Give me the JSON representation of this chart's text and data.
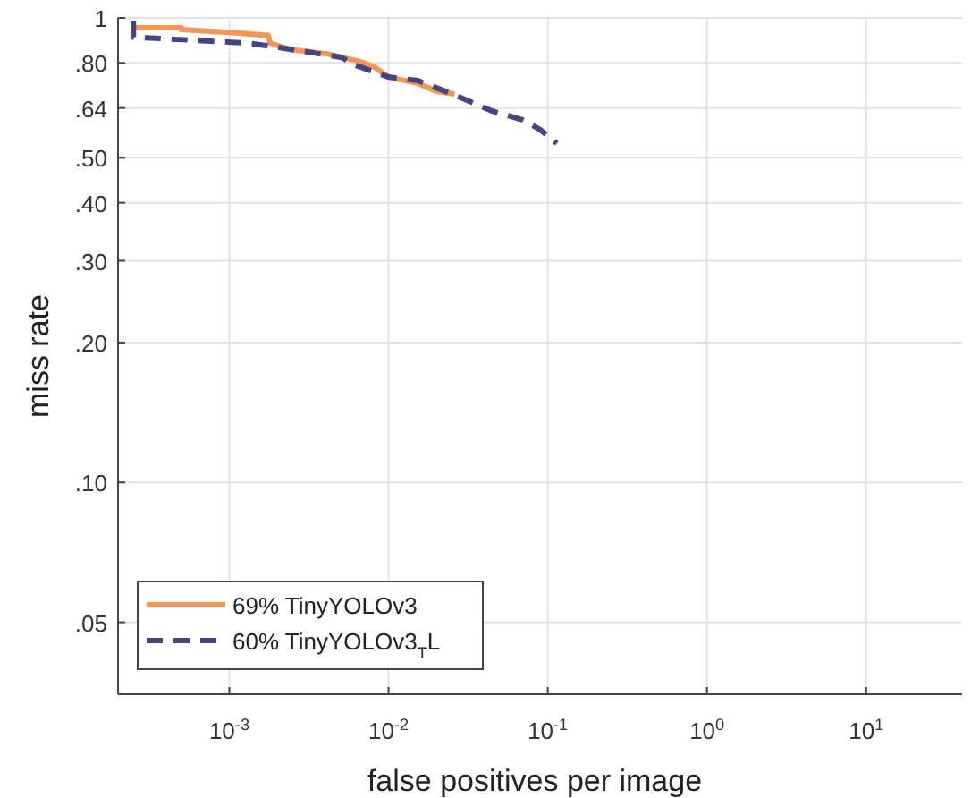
{
  "chart_data": {
    "type": "line",
    "xlabel": "false positives per image",
    "ylabel": "miss rate",
    "log": "xy",
    "grid": true,
    "legend": "bottom left",
    "xlim": [
      0.0002,
      40
    ],
    "ylim": [
      0.035,
      1
    ],
    "xticks": [
      {
        "value": 0.001,
        "label": "10$^{-3}$"
      },
      {
        "value": 0.01,
        "label": "10$^{-2}$"
      },
      {
        "value": 0.1,
        "label": "10$^{-1}$"
      },
      {
        "value": 1,
        "label": "10$^{0}$"
      },
      {
        "value": 10,
        "label": "10$^{1}$"
      }
    ],
    "yticks": [
      {
        "value": 0.05,
        "label": ".05"
      },
      {
        "value": 0.1,
        "label": ".10"
      },
      {
        "value": 0.2,
        "label": ".20"
      },
      {
        "value": 0.3,
        "label": ".30"
      },
      {
        "value": 0.4,
        "label": ".40"
      },
      {
        "value": 0.5,
        "label": ".50"
      },
      {
        "value": 0.64,
        "label": ".64"
      },
      {
        "value": 0.8,
        "label": ".80"
      },
      1
    ],
    "series": [
      {
        "name": "69% TinyYOLOv3",
        "color": "#f4955a",
        "line_style": "solid",
        "x": [
          0.00025,
          0.0005,
          0.0005,
          0.001,
          0.00176,
          0.0018,
          0.0024,
          0.0041,
          0.0064,
          0.008,
          0.01,
          0.0153,
          0.02,
          0.026
        ],
        "values": [
          0.952,
          0.952,
          0.944,
          0.93,
          0.917,
          0.883,
          0.855,
          0.837,
          0.808,
          0.787,
          0.746,
          0.723,
          0.695,
          0.686
        ]
      },
      {
        "name": "60% TinyYOLOv3$_{T}$L",
        "color": "#45457f",
        "line_style": "dashed",
        "x": [
          0.00025,
          0.00025,
          0.0013,
          0.00185,
          0.0031,
          0.0051,
          0.006,
          0.01,
          0.0153,
          0.0243,
          0.045,
          0.07,
          0.09,
          0.114
        ],
        "values": [
          0.982,
          0.909,
          0.883,
          0.868,
          0.845,
          0.822,
          0.794,
          0.746,
          0.733,
          0.689,
          0.63,
          0.603,
          0.574,
          0.537
        ]
      }
    ]
  }
}
